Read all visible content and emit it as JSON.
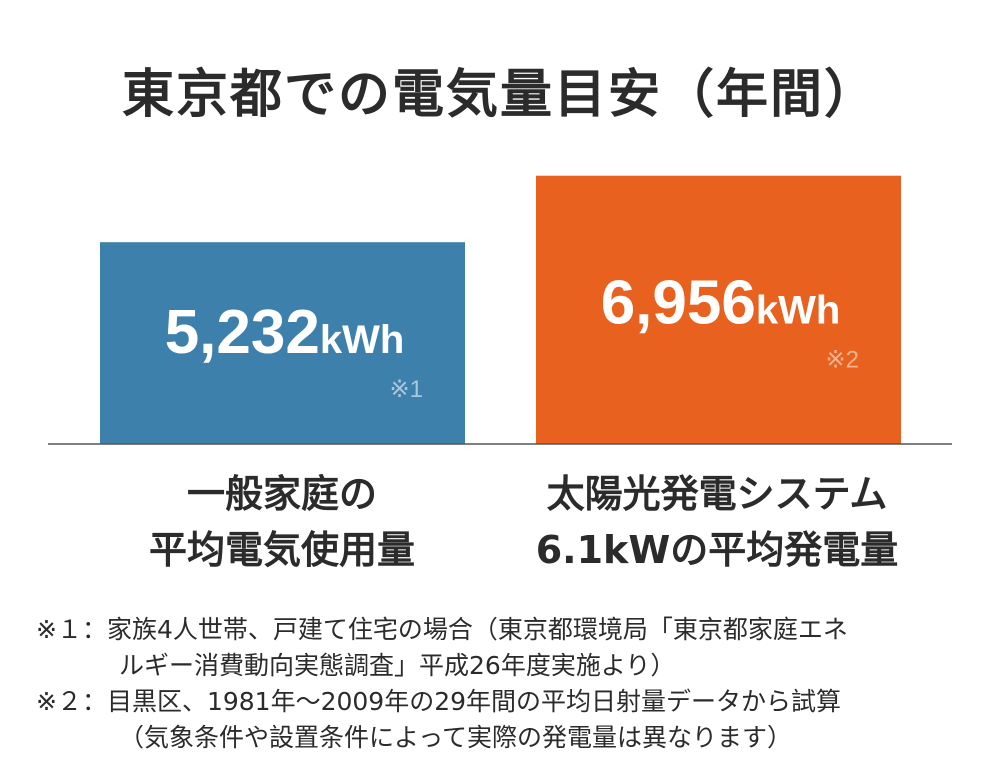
{
  "title": "東京都での電気量目安（年間）",
  "chart_data": {
    "type": "bar",
    "title": "東京都での電気量目安（年間）",
    "xlabel": "",
    "ylabel": "",
    "unit": "kWh",
    "ylim": [
      0,
      7000
    ],
    "categories": [
      [
        "一般家庭の",
        "平均電気使用量"
      ],
      [
        "太陽光発電システム",
        "6.1kWの平均発電量"
      ]
    ],
    "values": [
      5232,
      6956
    ],
    "value_labels": [
      "5,232",
      "6,956"
    ],
    "notes": [
      "※1",
      "※2"
    ],
    "colors": [
      "#3e80ac",
      "#e8611f"
    ],
    "grid": false,
    "legend": "none"
  },
  "footnotes": [
    [
      "※１：家族4人世帯、戸建て住宅の場合（東京都環境局「東京都家庭エネ",
      "ルギー消費動向実態調査」平成26年度実施より）"
    ],
    [
      "※２：目黒区、1981年〜2009年の29年間の平均日射量データから試算",
      "（気象条件や設置条件によって実際の発電量は異なります）"
    ]
  ]
}
